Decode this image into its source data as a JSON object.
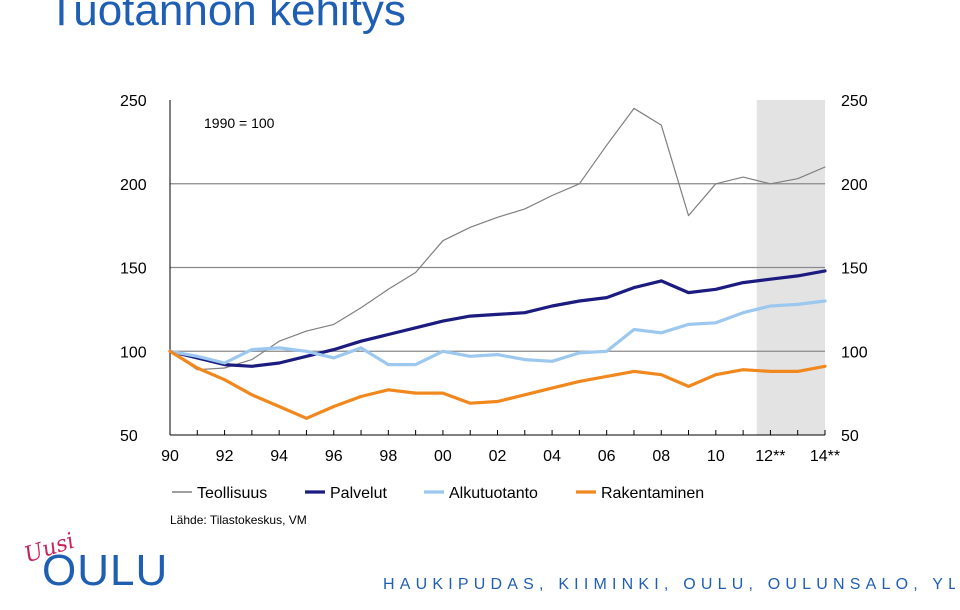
{
  "slide": {
    "title": "Tuotannon kehitys",
    "footer": "HAUKIPUDAS, KIIMINKI, OULU, OULUNSALO, YLI-II",
    "logo": {
      "top_text": "Uusi",
      "main_text": "OULU"
    }
  },
  "colors": {
    "title": "#1f5fb3",
    "teollisuus": "#7f7f7f",
    "palvelut": "#1b1b80",
    "alkutuotanto": "#9cc8f0",
    "rakentaminen": "#f0881e",
    "forecast_shade": "#e3e3e3",
    "logo_accent": "#c8235a"
  },
  "chart_data": {
    "type": "line",
    "annotation": "1990 = 100",
    "source": "Lähde: Tilastokeskus, VM",
    "x": [
      1990,
      1991,
      1992,
      1993,
      1994,
      1995,
      1996,
      1997,
      1998,
      1999,
      2000,
      2001,
      2002,
      2003,
      2004,
      2005,
      2006,
      2007,
      2008,
      2009,
      2010,
      2011,
      2012,
      2013,
      2014
    ],
    "x_tick_labels": [
      "90",
      "92",
      "94",
      "96",
      "98",
      "00",
      "02",
      "04",
      "06",
      "08",
      "10",
      "12**",
      "14**"
    ],
    "x_tick_values": [
      1990,
      1992,
      1994,
      1996,
      1998,
      2000,
      2002,
      2004,
      2006,
      2008,
      2010,
      2012,
      2014
    ],
    "xlim": [
      1990,
      2014
    ],
    "ylim": [
      50,
      250
    ],
    "y_ticks": [
      50,
      100,
      150,
      200,
      250
    ],
    "y_tick_labels": [
      "50",
      "100",
      "150",
      "200",
      "250"
    ],
    "gridlines_at": [
      100,
      150,
      200
    ],
    "forecast_from": 2011.5,
    "legend_position": "bottom",
    "series": [
      {
        "name": "Teollisuus",
        "color_key": "teollisuus",
        "values": [
          100,
          89,
          90,
          95,
          106,
          112,
          116,
          126,
          137,
          147,
          166,
          174,
          180,
          185,
          193,
          200,
          223,
          245,
          235,
          181,
          200,
          204,
          200,
          203,
          210
        ]
      },
      {
        "name": "Palvelut",
        "color_key": "palvelut",
        "values": [
          100,
          96,
          92,
          91,
          93,
          97,
          101,
          106,
          110,
          114,
          118,
          121,
          122,
          123,
          127,
          130,
          132,
          138,
          142,
          135,
          137,
          141,
          143,
          145,
          148
        ]
      },
      {
        "name": "Alkutuotanto",
        "color_key": "alkutuotanto",
        "values": [
          100,
          97,
          93,
          101,
          102,
          100,
          96,
          102,
          92,
          92,
          100,
          97,
          98,
          95,
          94,
          99,
          100,
          113,
          111,
          116,
          117,
          123,
          127,
          128,
          130
        ]
      },
      {
        "name": "Rakentaminen",
        "color_key": "rakentaminen",
        "values": [
          100,
          90,
          83,
          74,
          67,
          60,
          67,
          73,
          77,
          75,
          75,
          69,
          70,
          74,
          78,
          82,
          85,
          88,
          86,
          79,
          86,
          89,
          88,
          88,
          91
        ]
      }
    ]
  }
}
